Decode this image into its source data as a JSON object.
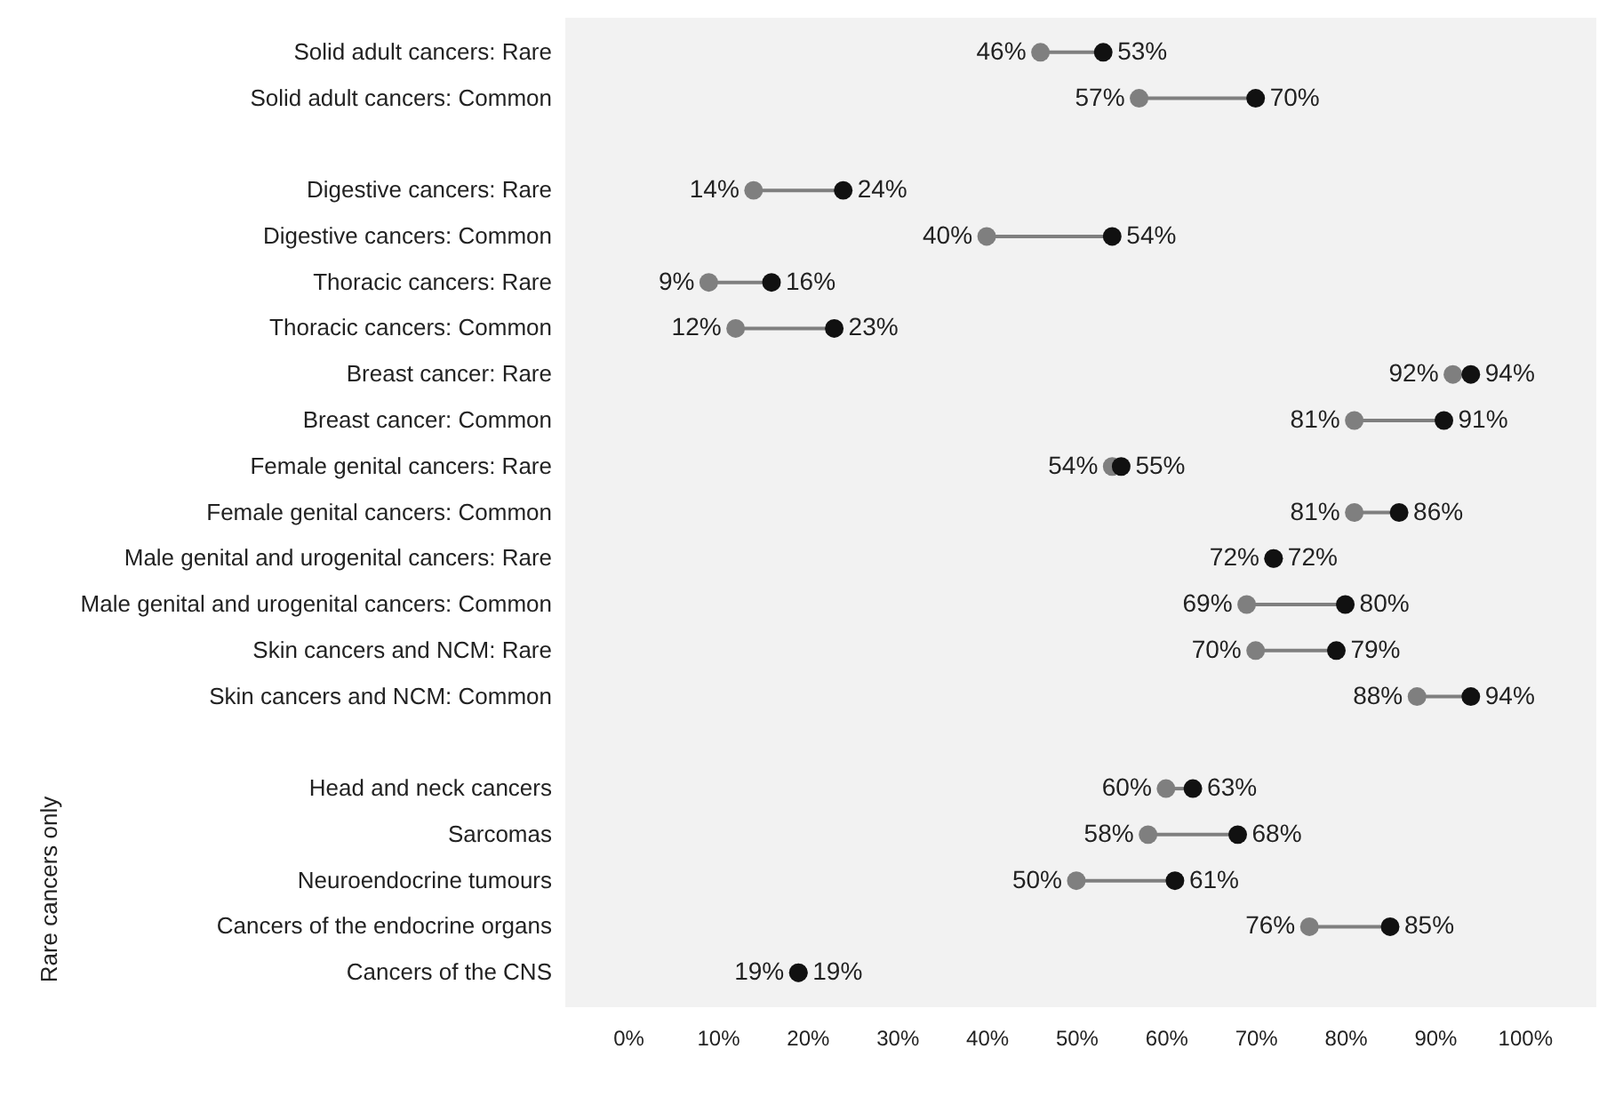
{
  "chart_data": {
    "type": "scatter",
    "orientation": "horizontal",
    "marker": "circle",
    "xlim": [
      -7,
      108
    ],
    "categories": [
      "Solid adult cancers: Rare",
      "Solid adult cancers: Common",
      null,
      "Digestive cancers: Rare",
      "Digestive cancers: Common",
      "Thoracic cancers: Rare",
      "Thoracic cancers: Common",
      "Breast cancer: Rare",
      "Breast cancer: Common",
      "Female genital cancers: Rare",
      "Female genital cancers: Common",
      "Male genital and urogenital cancers: Rare",
      "Male genital and urogenital cancers: Common",
      "Skin cancers and NCM: Rare",
      "Skin cancers and NCM: Common",
      null,
      "Head and neck cancers",
      "Sarcomas",
      "Neuroendocrine tumours",
      "Cancers of the endocrine organs",
      "Cancers of the CNS"
    ],
    "annotations": [
      "Rare cancers only"
    ],
    "xticks": [
      {
        "value": 0,
        "label": "0%"
      },
      {
        "value": 10,
        "label": "10%"
      },
      {
        "value": 20,
        "label": "20%"
      },
      {
        "value": 30,
        "label": "30%"
      },
      {
        "value": 40,
        "label": "40%"
      },
      {
        "value": 50,
        "label": "50%"
      },
      {
        "value": 60,
        "label": "60%"
      },
      {
        "value": 70,
        "label": "70%"
      },
      {
        "value": 80,
        "label": "80%"
      },
      {
        "value": 90,
        "label": "90%"
      },
      {
        "value": 100,
        "label": "100%"
      }
    ],
    "series": [
      {
        "color": "#7f7f7f",
        "values": [
          46,
          57,
          null,
          14,
          40,
          9,
          12,
          92,
          81,
          54,
          81,
          72,
          69,
          70,
          88,
          null,
          60,
          58,
          50,
          76,
          19
        ],
        "value_labels": [
          "46%",
          "57%",
          null,
          "14%",
          "40%",
          "9%",
          "12%",
          "92%",
          "81%",
          "54%",
          "81%",
          "72%",
          "69%",
          "70%",
          "88%",
          null,
          "60%",
          "58%",
          "50%",
          "76%",
          "19%"
        ]
      },
      {
        "color": "#111111",
        "values": [
          53,
          70,
          null,
          24,
          54,
          16,
          23,
          94,
          91,
          55,
          86,
          72,
          80,
          79,
          94,
          null,
          63,
          68,
          61,
          85,
          19
        ],
        "value_labels": [
          "53%",
          "70%",
          null,
          "24%",
          "54%",
          "16%",
          "23%",
          "94%",
          "91%",
          "55%",
          "86%",
          "72%",
          "80%",
          "79%",
          "94%",
          null,
          "63%",
          "68%",
          "61%",
          "85%",
          "19%"
        ]
      }
    ]
  }
}
